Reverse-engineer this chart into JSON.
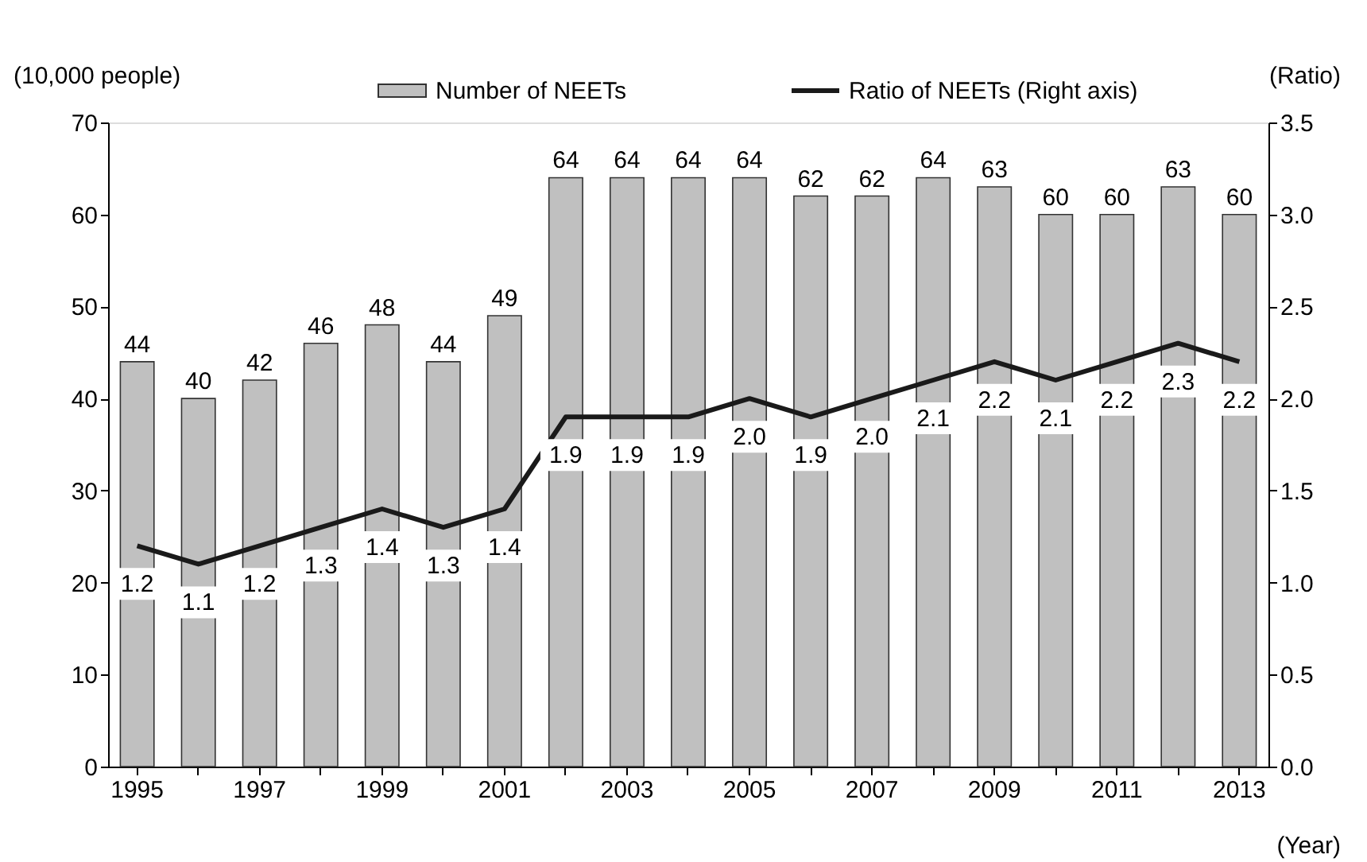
{
  "chart_data": {
    "type": "bar",
    "xlabel": "(Year)",
    "ylabel": "(10,000 people)",
    "y2label": "(Ratio)",
    "categories": [
      "1995",
      null,
      "1997",
      null,
      "1999",
      null,
      "2001",
      null,
      "2003",
      null,
      "2005",
      null,
      "2007",
      null,
      "2009",
      null,
      "2011",
      null,
      "2013"
    ],
    "series": [
      {
        "name": "Number of NEETs",
        "color": "#c0c0c0",
        "values": [
          44,
          40,
          42,
          46,
          48,
          44,
          49,
          64,
          64,
          64,
          64,
          62,
          62,
          64,
          63,
          60,
          60,
          63,
          60
        ],
        "value_labels": [
          "44",
          "40",
          "42",
          "46",
          "48",
          "44",
          "49",
          "64",
          "64",
          "64",
          "64",
          "62",
          "62",
          "64",
          "63",
          "60",
          "60",
          "63",
          "60"
        ]
      },
      {
        "name": "Ratio of NEETs (Right axis)",
        "type": "line",
        "axis": "y2",
        "color": "#1a1a1a",
        "values": [
          1.2,
          1.1,
          1.2,
          1.3,
          1.4,
          1.3,
          1.4,
          1.9,
          1.9,
          1.9,
          2.0,
          1.9,
          2.0,
          2.1,
          2.2,
          2.1,
          2.2,
          2.3,
          2.2
        ],
        "value_labels": [
          "1.2",
          "1.1",
          "1.2",
          "1.3",
          "1.4",
          "1.3",
          "1.4",
          "1.9",
          "1.9",
          "1.9",
          "2.0",
          "1.9",
          "2.0",
          "2.1",
          "2.2",
          "2.1",
          "2.2",
          "2.3",
          "2.2"
        ]
      }
    ],
    "ylim": [
      0,
      70
    ],
    "yticks": [
      0,
      10,
      20,
      30,
      40,
      50,
      60,
      70
    ],
    "y2lim": [
      0,
      3.5
    ],
    "y2ticks": [
      {
        "value": 0,
        "label": "0.0"
      },
      0.5,
      {
        "value": 1,
        "label": "1.0"
      },
      1.5,
      {
        "value": 2,
        "label": "2.0"
      },
      2.5,
      {
        "value": 3,
        "label": "3.0"
      },
      3.5
    ],
    "legend": "top",
    "grid": false
  }
}
